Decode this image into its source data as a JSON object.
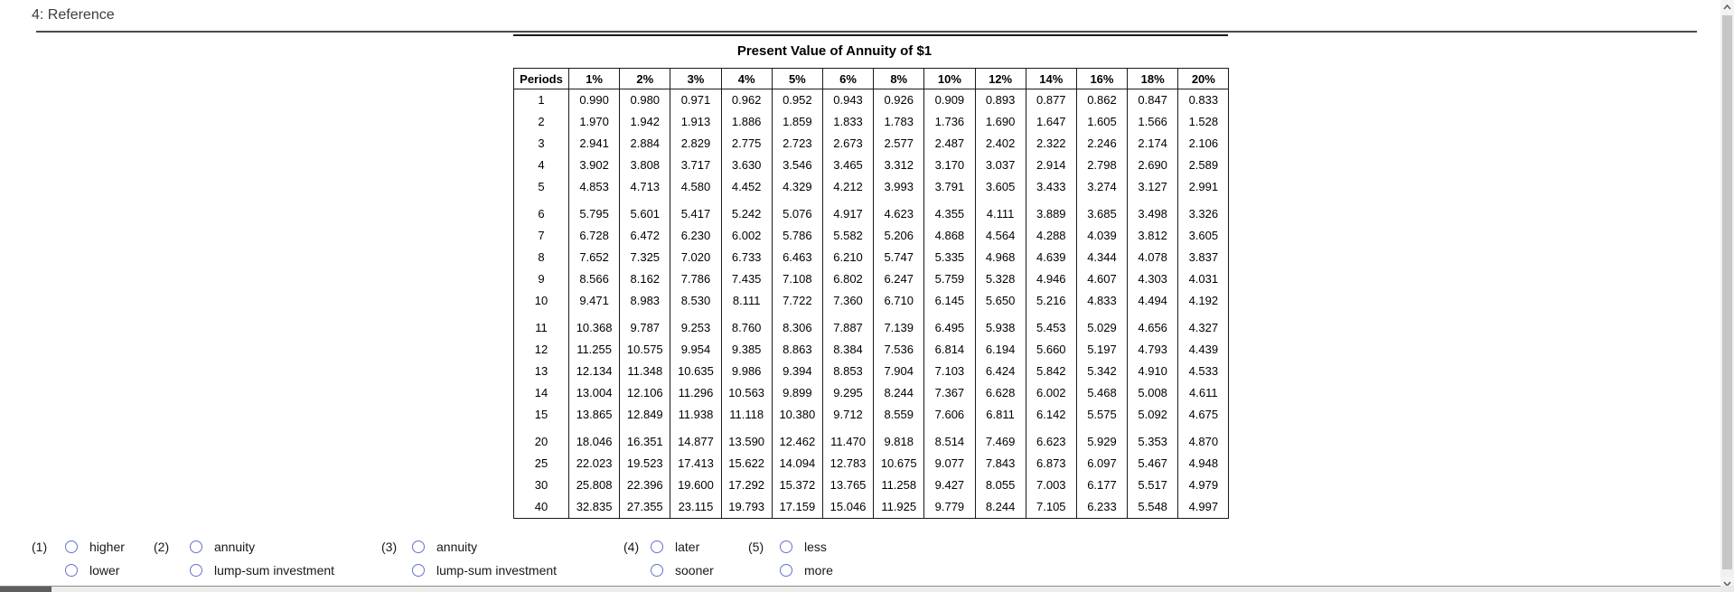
{
  "page": {
    "title": "4: Reference"
  },
  "table": {
    "title": "Present Value of Annuity of $1",
    "columns": [
      "Periods",
      "1%",
      "2%",
      "3%",
      "4%",
      "5%",
      "6%",
      "8%",
      "10%",
      "12%",
      "14%",
      "16%",
      "18%",
      "20%"
    ],
    "row_groups": [
      [
        {
          "period": "1",
          "values": [
            "0.990",
            "0.980",
            "0.971",
            "0.962",
            "0.952",
            "0.943",
            "0.926",
            "0.909",
            "0.893",
            "0.877",
            "0.862",
            "0.847",
            "0.833"
          ]
        },
        {
          "period": "2",
          "values": [
            "1.970",
            "1.942",
            "1.913",
            "1.886",
            "1.859",
            "1.833",
            "1.783",
            "1.736",
            "1.690",
            "1.647",
            "1.605",
            "1.566",
            "1.528"
          ]
        },
        {
          "period": "3",
          "values": [
            "2.941",
            "2.884",
            "2.829",
            "2.775",
            "2.723",
            "2.673",
            "2.577",
            "2.487",
            "2.402",
            "2.322",
            "2.246",
            "2.174",
            "2.106"
          ]
        },
        {
          "period": "4",
          "values": [
            "3.902",
            "3.808",
            "3.717",
            "3.630",
            "3.546",
            "3.465",
            "3.312",
            "3.170",
            "3.037",
            "2.914",
            "2.798",
            "2.690",
            "2.589"
          ]
        },
        {
          "period": "5",
          "values": [
            "4.853",
            "4.713",
            "4.580",
            "4.452",
            "4.329",
            "4.212",
            "3.993",
            "3.791",
            "3.605",
            "3.433",
            "3.274",
            "3.127",
            "2.991"
          ]
        }
      ],
      [
        {
          "period": "6",
          "values": [
            "5.795",
            "5.601",
            "5.417",
            "5.242",
            "5.076",
            "4.917",
            "4.623",
            "4.355",
            "4.111",
            "3.889",
            "3.685",
            "3.498",
            "3.326"
          ]
        },
        {
          "period": "7",
          "values": [
            "6.728",
            "6.472",
            "6.230",
            "6.002",
            "5.786",
            "5.582",
            "5.206",
            "4.868",
            "4.564",
            "4.288",
            "4.039",
            "3.812",
            "3.605"
          ]
        },
        {
          "period": "8",
          "values": [
            "7.652",
            "7.325",
            "7.020",
            "6.733",
            "6.463",
            "6.210",
            "5.747",
            "5.335",
            "4.968",
            "4.639",
            "4.344",
            "4.078",
            "3.837"
          ]
        },
        {
          "period": "9",
          "values": [
            "8.566",
            "8.162",
            "7.786",
            "7.435",
            "7.108",
            "6.802",
            "6.247",
            "5.759",
            "5.328",
            "4.946",
            "4.607",
            "4.303",
            "4.031"
          ]
        },
        {
          "period": "10",
          "values": [
            "9.471",
            "8.983",
            "8.530",
            "8.111",
            "7.722",
            "7.360",
            "6.710",
            "6.145",
            "5.650",
            "5.216",
            "4.833",
            "4.494",
            "4.192"
          ]
        }
      ],
      [
        {
          "period": "11",
          "values": [
            "10.368",
            "9.787",
            "9.253",
            "8.760",
            "8.306",
            "7.887",
            "7.139",
            "6.495",
            "5.938",
            "5.453",
            "5.029",
            "4.656",
            "4.327"
          ]
        },
        {
          "period": "12",
          "values": [
            "11.255",
            "10.575",
            "9.954",
            "9.385",
            "8.863",
            "8.384",
            "7.536",
            "6.814",
            "6.194",
            "5.660",
            "5.197",
            "4.793",
            "4.439"
          ]
        },
        {
          "period": "13",
          "values": [
            "12.134",
            "11.348",
            "10.635",
            "9.986",
            "9.394",
            "8.853",
            "7.904",
            "7.103",
            "6.424",
            "5.842",
            "5.342",
            "4.910",
            "4.533"
          ]
        },
        {
          "period": "14",
          "values": [
            "13.004",
            "12.106",
            "11.296",
            "10.563",
            "9.899",
            "9.295",
            "8.244",
            "7.367",
            "6.628",
            "6.002",
            "5.468",
            "5.008",
            "4.611"
          ]
        },
        {
          "period": "15",
          "values": [
            "13.865",
            "12.849",
            "11.938",
            "11.118",
            "10.380",
            "9.712",
            "8.559",
            "7.606",
            "6.811",
            "6.142",
            "5.575",
            "5.092",
            "4.675"
          ]
        }
      ],
      [
        {
          "period": "20",
          "values": [
            "18.046",
            "16.351",
            "14.877",
            "13.590",
            "12.462",
            "11.470",
            "9.818",
            "8.514",
            "7.469",
            "6.623",
            "5.929",
            "5.353",
            "4.870"
          ]
        },
        {
          "period": "25",
          "values": [
            "22.023",
            "19.523",
            "17.413",
            "15.622",
            "14.094",
            "12.783",
            "10.675",
            "9.077",
            "7.843",
            "6.873",
            "6.097",
            "5.467",
            "4.948"
          ]
        },
        {
          "period": "30",
          "values": [
            "25.808",
            "22.396",
            "19.600",
            "17.292",
            "15.372",
            "13.765",
            "11.258",
            "9.427",
            "8.055",
            "7.003",
            "6.177",
            "5.517",
            "4.979"
          ]
        },
        {
          "period": "40",
          "values": [
            "32.835",
            "27.355",
            "23.115",
            "19.793",
            "17.159",
            "15.046",
            "11.925",
            "9.779",
            "8.244",
            "7.105",
            "6.233",
            "5.548",
            "4.997"
          ]
        }
      ]
    ]
  },
  "questions": [
    {
      "number": "(1)",
      "options": [
        "higher",
        "lower"
      ]
    },
    {
      "number": "(2)",
      "options": [
        "annuity",
        "lump-sum investment"
      ]
    },
    {
      "number": "(3)",
      "options": [
        "annuity",
        "lump-sum investment"
      ]
    },
    {
      "number": "(4)",
      "options": [
        "later",
        "sooner"
      ]
    },
    {
      "number": "(5)",
      "options": [
        "less",
        "more"
      ]
    }
  ],
  "icons": {
    "scroll_up": "chevron-up-icon",
    "scroll_down": "chevron-down-icon"
  },
  "colors": {
    "radio_border": "#6472cf",
    "table_border": "#1a1a1a",
    "header_rule": "#4a4a4a",
    "vscroll_track": "#f0f0f0",
    "vscroll_thumb": "#c6c6c6",
    "hscroll_thumb": "#5f5f5f"
  }
}
